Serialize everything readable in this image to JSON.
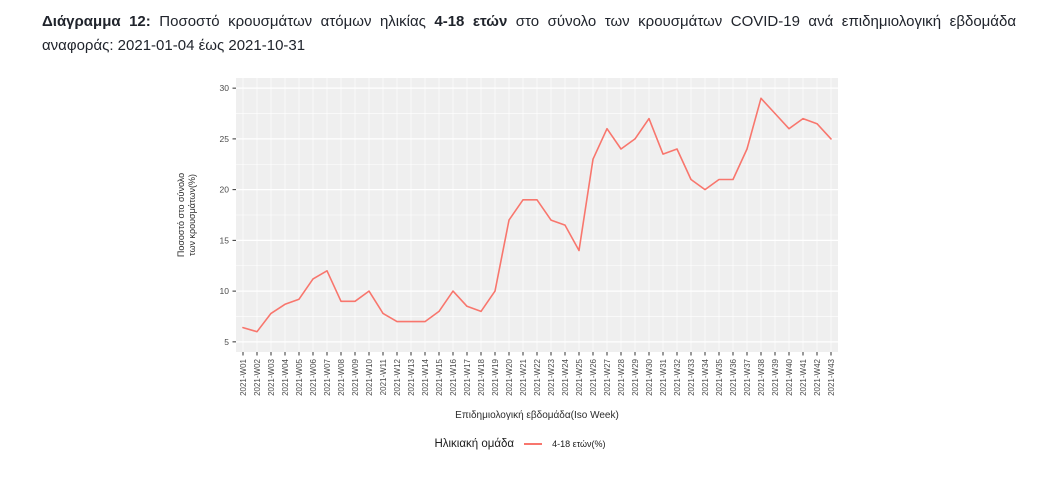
{
  "header": {
    "label_bold": "Διάγραμμα 12:",
    "text_1": " Ποσοστό κρουσμάτων ατόμων ηλικίας ",
    "bold_2": "4-18 ετών",
    "text_2": " στο σύνολο των κρουσμάτων COVID-19 ανά επιδημιολογική εβδομάδα",
    "line_2": "αναφοράς: 2021-01-04 έως 2021-10-31"
  },
  "chart_data": {
    "type": "line",
    "title": "",
    "xlabel": "Επιδημιολογική εβδομάδα(Iso Week)",
    "ylabel": "Ποσοστό στο σύνολο των κρουσμάτων(%)",
    "ylabel_line1": "Ποσοστό στο σύνολο",
    "ylabel_line2": "των κρουσμάτων(%)",
    "legend_title": "Ηλικιακή ομάδα",
    "legend_position": "bottom",
    "grid": true,
    "panel_bg": "#efefef",
    "grid_color": "#ffffff",
    "tick_color": "#333333",
    "axis_text_color": "#4a4a4a",
    "ylim": [
      4,
      31
    ],
    "yticks": [
      5,
      10,
      15,
      20,
      25,
      30
    ],
    "categories": [
      "2021-W01",
      "2021-W02",
      "2021-W03",
      "2021-W04",
      "2021-W05",
      "2021-W06",
      "2021-W07",
      "2021-W08",
      "2021-W09",
      "2021-W10",
      "2021-W11",
      "2021-W12",
      "2021-W13",
      "2021-W14",
      "2021-W15",
      "2021-W16",
      "2021-W17",
      "2021-W18",
      "2021-W19",
      "2021-W20",
      "2021-W21",
      "2021-W22",
      "2021-W23",
      "2021-W24",
      "2021-W25",
      "2021-W26",
      "2021-W27",
      "2021-W28",
      "2021-W29",
      "2021-W30",
      "2021-W31",
      "2021-W32",
      "2021-W33",
      "2021-W34",
      "2021-W35",
      "2021-W36",
      "2021-W37",
      "2021-W38",
      "2021-W39",
      "2021-W40",
      "2021-W41",
      "2021-W42",
      "2021-W43"
    ],
    "series": [
      {
        "name": "4-18 ετών(%)",
        "color": "#f8766d",
        "values": [
          6.4,
          6,
          7.8,
          8.7,
          9.2,
          11.2,
          12,
          9,
          9,
          10,
          7.8,
          7,
          7,
          7,
          8,
          10,
          8.5,
          8,
          10,
          17,
          19,
          19,
          17,
          16.5,
          14,
          23,
          26,
          24,
          25,
          27,
          23.5,
          24,
          21,
          20,
          21,
          21,
          24,
          29,
          27.5,
          26,
          27,
          26.5,
          25
        ]
      }
    ]
  }
}
